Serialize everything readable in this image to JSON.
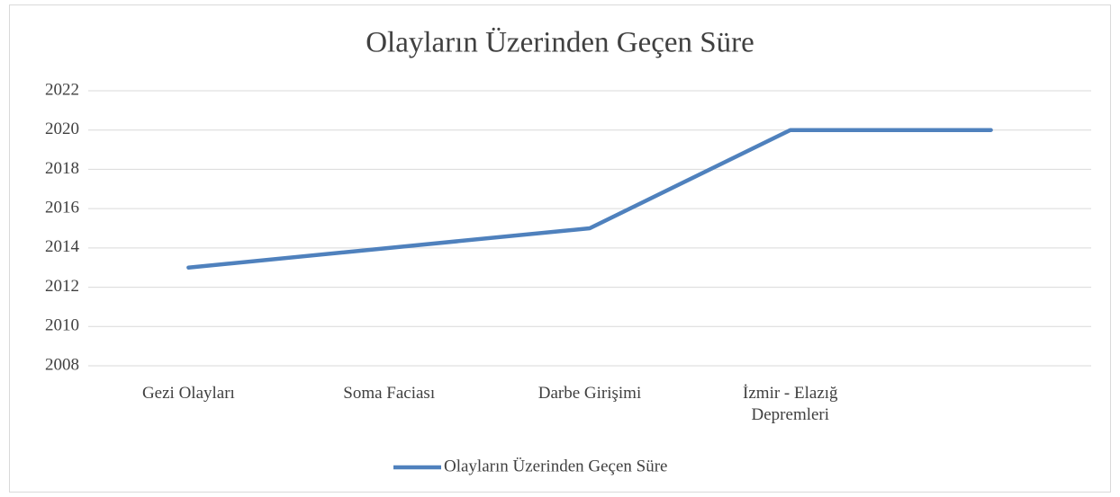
{
  "chart_data": {
    "type": "line",
    "title": "Olayların Üzerinden Geçen Süre",
    "categories": [
      "Gezi Olayları",
      "Soma Faciası",
      "Darbe Girişimi",
      "İzmir - Elazığ Depremleri",
      null
    ],
    "series": [
      {
        "name": "Olayların Üzerinden Geçen Süre",
        "color": "#4f81bd",
        "values": [
          2013,
          2014,
          2015,
          2020,
          2020
        ]
      }
    ],
    "ylim": [
      2008,
      2022
    ],
    "yticks": [
      2008,
      2010,
      2012,
      2014,
      2016,
      2018,
      2020,
      2022
    ],
    "grid": true,
    "legend": "bottom"
  }
}
